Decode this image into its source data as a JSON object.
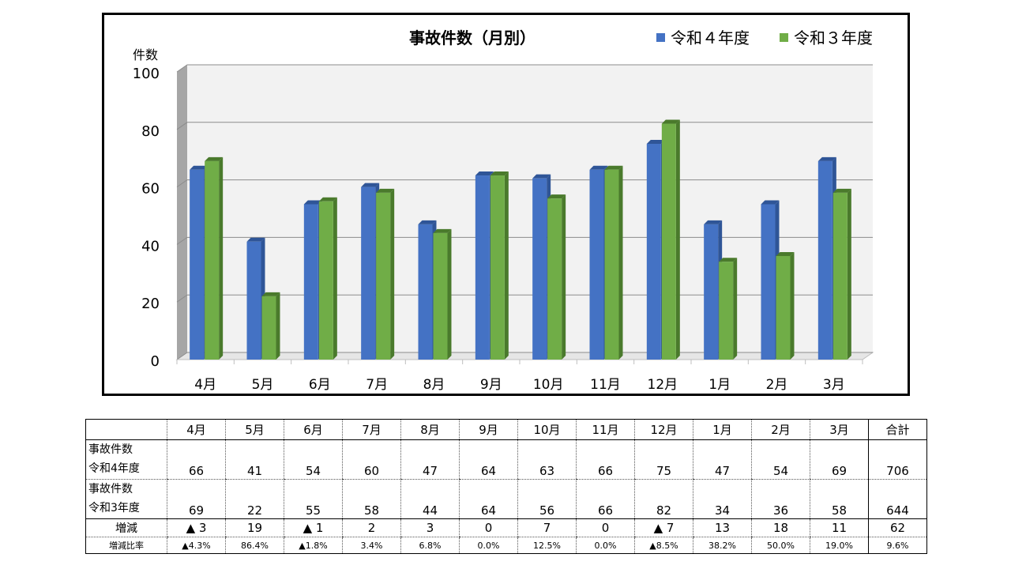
{
  "chart_data": {
    "type": "bar",
    "title": "事故件数（月別）",
    "ylabel": "件数",
    "ylim": [
      0,
      100
    ],
    "yticks": [
      0,
      20,
      40,
      60,
      80,
      100
    ],
    "categories": [
      "4月",
      "5月",
      "6月",
      "7月",
      "8月",
      "9月",
      "10月",
      "11月",
      "12月",
      "1月",
      "2月",
      "3月"
    ],
    "series": [
      {
        "name": "令和４年度",
        "values": [
          66,
          41,
          54,
          60,
          47,
          64,
          63,
          66,
          75,
          47,
          54,
          69
        ]
      },
      {
        "name": "令和３年度",
        "values": [
          69,
          22,
          55,
          58,
          44,
          64,
          56,
          66,
          82,
          34,
          36,
          58
        ]
      }
    ],
    "legend_position": "top-right",
    "grid": true,
    "style": "3d-clustered-column"
  },
  "colors": {
    "series_1": "#4472c4",
    "series_1_dark": "#2f5597",
    "series_2": "#70ad47",
    "series_2_dark": "#4a7a2c",
    "plot_bg": "#f2f2f2",
    "grid": "#8c8c8c",
    "wall_side": "#a6a6a6"
  },
  "table": {
    "header": [
      "4月",
      "5月",
      "6月",
      "7月",
      "8月",
      "9月",
      "10月",
      "11月",
      "12月",
      "1月",
      "2月",
      "3月",
      "合計"
    ],
    "rows": [
      {
        "label_line1": "事故件数",
        "label_line2": "令和4年度",
        "values": [
          "66",
          "41",
          "54",
          "60",
          "47",
          "64",
          "63",
          "66",
          "75",
          "47",
          "54",
          "69",
          "706"
        ]
      },
      {
        "label_line1": "事故件数",
        "label_line2": "令和3年度",
        "values": [
          "69",
          "22",
          "55",
          "58",
          "44",
          "64",
          "56",
          "66",
          "82",
          "34",
          "36",
          "58",
          "644"
        ]
      },
      {
        "label": "増減",
        "values": [
          "▲ 3",
          "19",
          "▲ 1",
          "2",
          "3",
          "0",
          "7",
          "0",
          "▲ 7",
          "13",
          "18",
          "11",
          "62"
        ]
      },
      {
        "label": "増減比率",
        "values": [
          "▲4.3%",
          "86.4%",
          "▲1.8%",
          "3.4%",
          "6.8%",
          "0.0%",
          "12.5%",
          "0.0%",
          "▲8.5%",
          "38.2%",
          "50.0%",
          "19.0%",
          "9.6%"
        ]
      }
    ]
  }
}
